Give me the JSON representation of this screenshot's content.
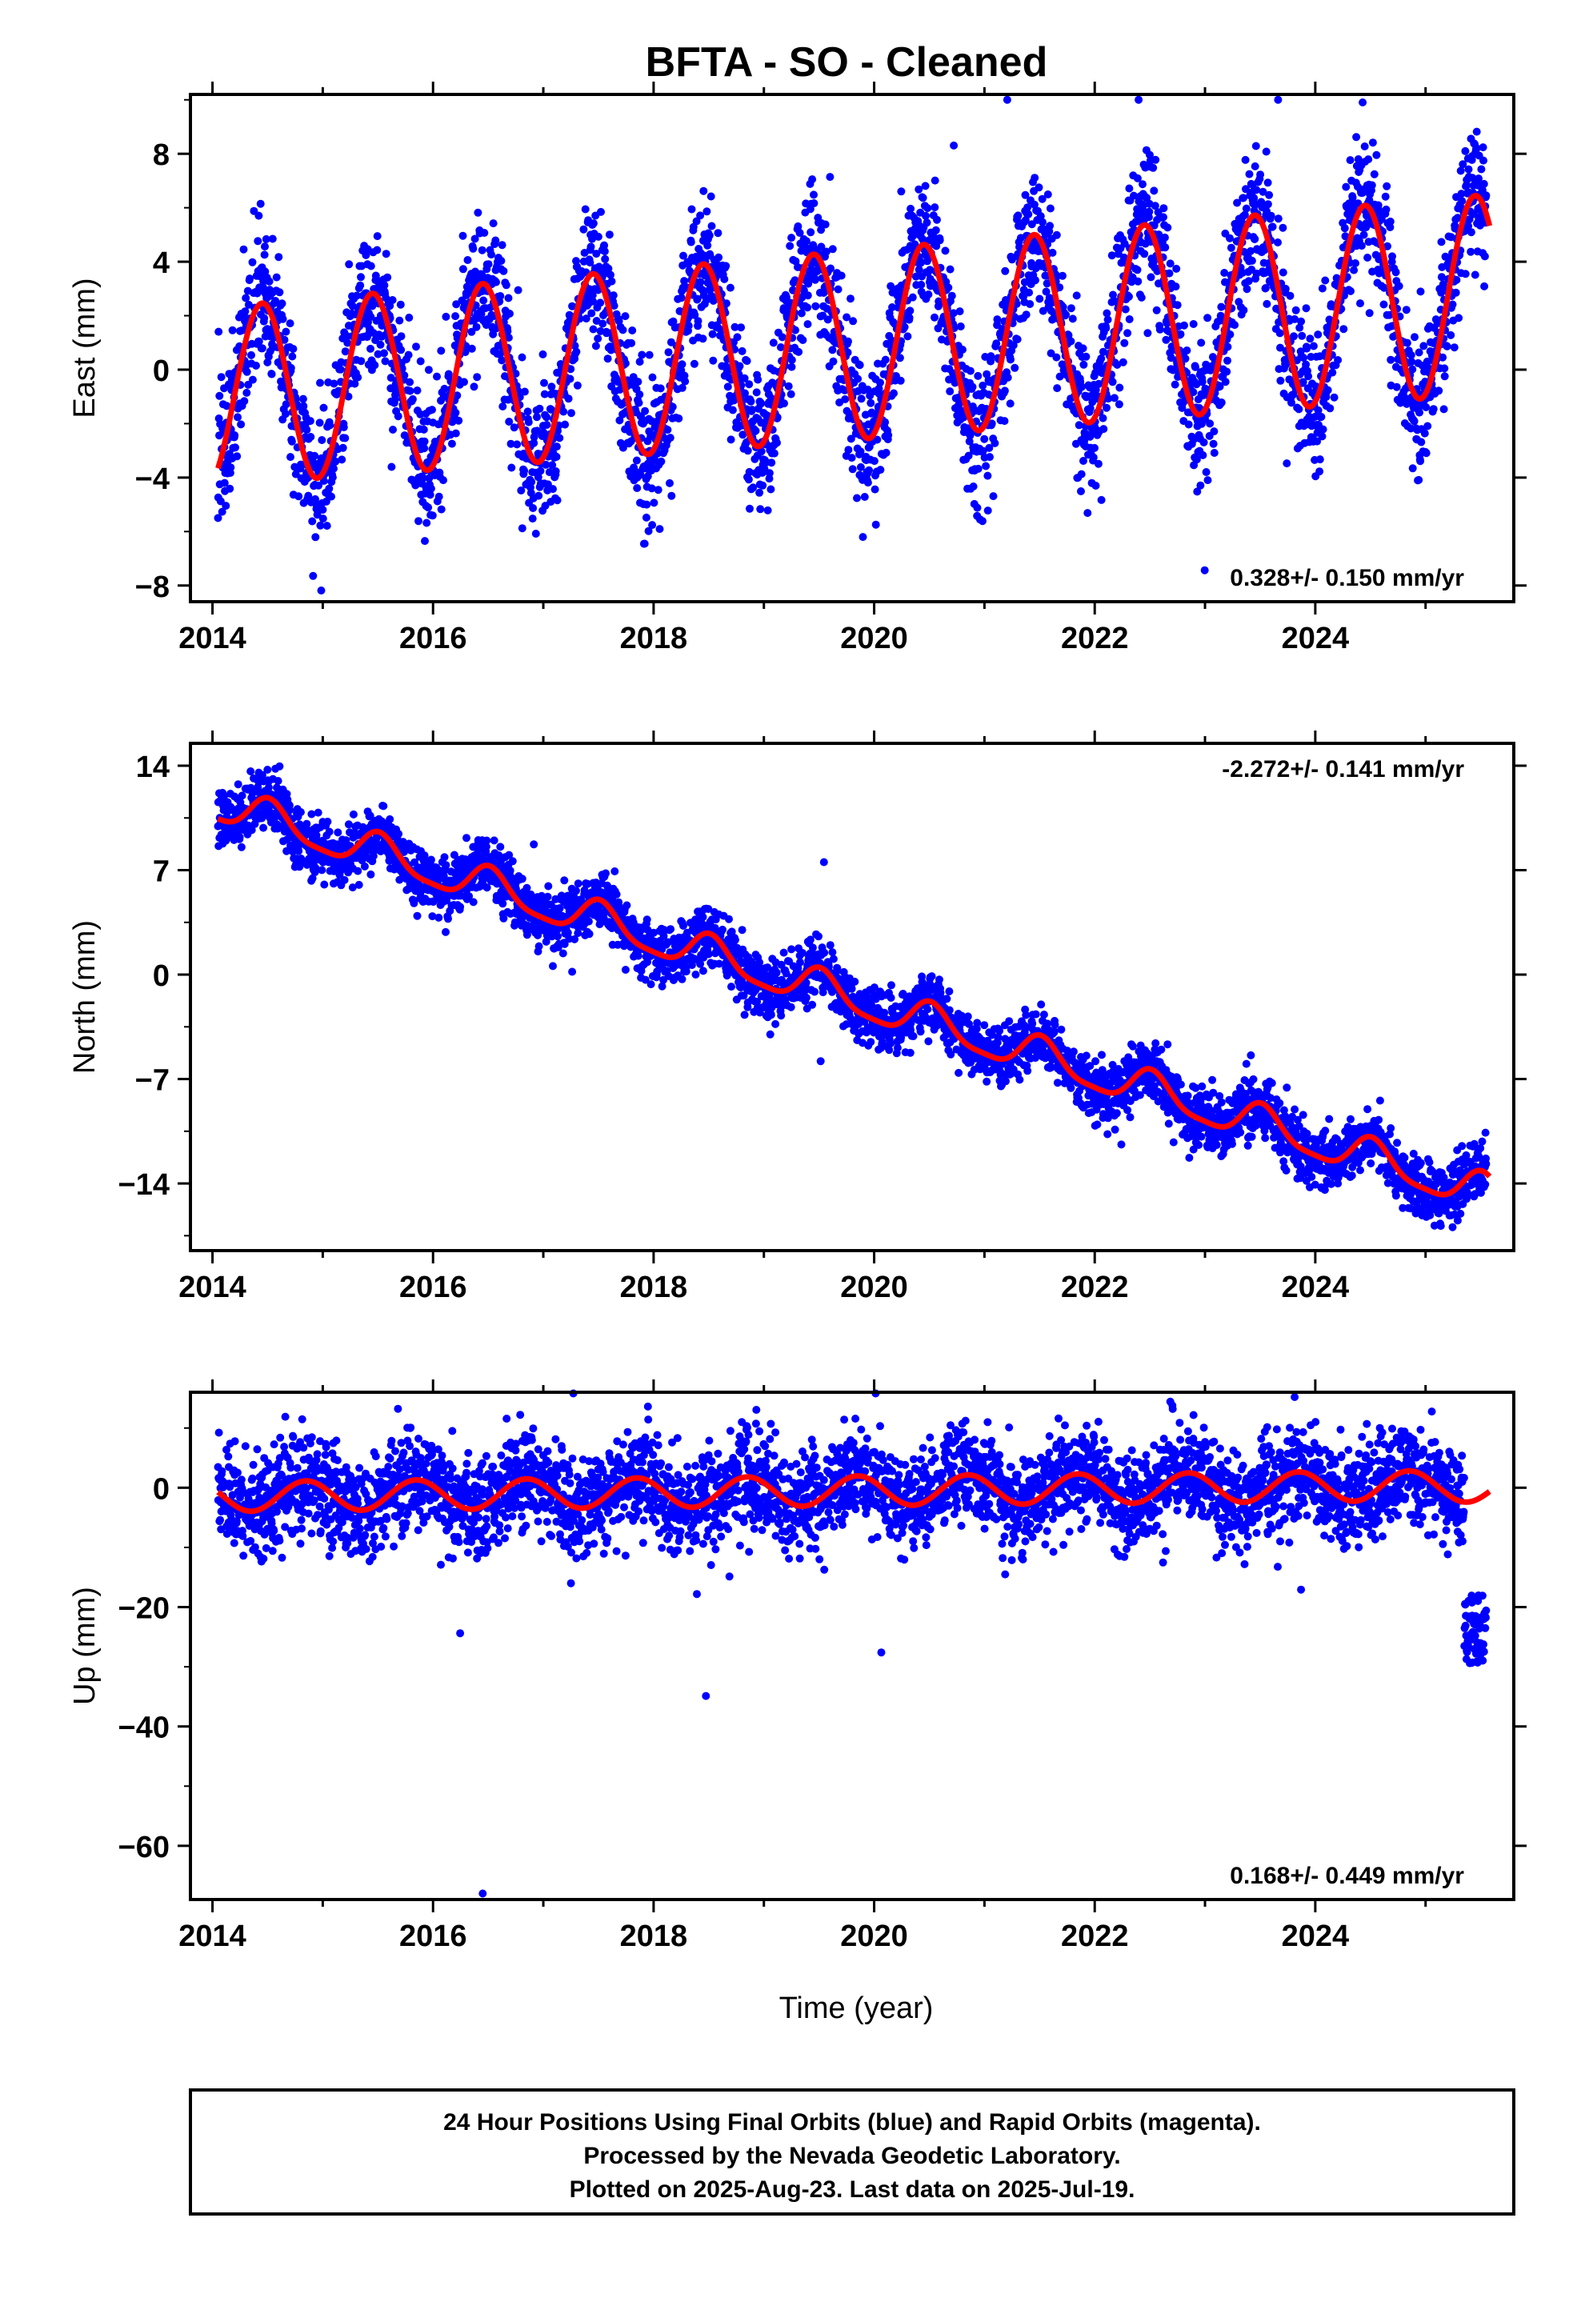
{
  "title": "BFTA  - SO - Cleaned",
  "colors": {
    "data": "#0000ff",
    "model": "#ff0000",
    "frame": "#000000"
  },
  "x_axis": {
    "label": "Time (year)",
    "range": [
      2013.8,
      2025.8
    ],
    "ticks": [
      2014,
      2016,
      2018,
      2020,
      2022,
      2024
    ]
  },
  "panels": [
    {
      "component": "East",
      "ylabel": "East (mm)",
      "ylim": [
        -8.6,
        10.2
      ],
      "yticks": [
        -8,
        -4,
        0,
        4,
        8
      ],
      "ytick_labels": [
        "−8",
        "−4",
        "0",
        "4",
        "8"
      ],
      "rate_text": "0.328+/- 0.150 mm/yr",
      "rate_position": "bottom-right",
      "model": {
        "offset_at_2014": -1.0,
        "trend": 0.328,
        "amplitude_start": 3.3,
        "amplitude_end": 3.7,
        "phase_peak_year_fraction": 0.45
      }
    },
    {
      "component": "North",
      "ylabel": "North (mm)",
      "ylim": [
        -18.5,
        15.5
      ],
      "yticks": [
        -14,
        -7,
        0,
        7,
        14
      ],
      "ytick_labels": [
        "−14",
        "−7",
        "0",
        "7",
        "14"
      ],
      "rate_text": "-2.272+/- 0.141 mm/yr",
      "rate_position": "top-right",
      "model": {
        "offset_at_2014": 11.5,
        "trend": -2.272,
        "amplitude_start": 1.2,
        "amplitude_end": 1.2,
        "phase_peak_year_fraction": 0.52
      }
    },
    {
      "component": "Up",
      "ylabel": "Up (mm)",
      "ylim": [
        -69,
        16
      ],
      "yticks": [
        -60,
        -40,
        -20,
        0
      ],
      "ytick_labels": [
        "−60",
        "−40",
        "−20",
        "0"
      ],
      "rate_text": "0.168+/- 0.449 mm/yr",
      "rate_position": "bottom-right",
      "model": {
        "offset_at_2014": -1.5,
        "trend": 0.168,
        "amplitude_start": 2.5,
        "amplitude_end": 2.5,
        "phase_peak_year_fraction": 0.85
      }
    }
  ],
  "chart_data": [
    {
      "type": "scatter",
      "title": "BFTA  - SO - Cleaned",
      "ylabel": "East (mm)",
      "xlabel": "",
      "xlim": [
        2013.8,
        2025.8
      ],
      "ylim": [
        -8.6,
        10.2
      ],
      "series": [
        {
          "name": "24 Hour Positions (Final Orbits)",
          "x_range": [
            2014.05,
            2025.55
          ],
          "y_range": [
            -8,
            9.8
          ]
        },
        {
          "name": "Model",
          "trend_mm_per_yr": 0.328,
          "seasonal_peaks_y": [
            2.4,
            2.8,
            3.1,
            3.4,
            3.7,
            4.0,
            4.3,
            4.6,
            5.0,
            5.3,
            5.6,
            6.0
          ],
          "seasonal_troughs_y": [
            -4.4,
            -4.1,
            -3.7,
            -3.4,
            -3.0,
            -2.7,
            -2.3,
            -2.0,
            -1.6,
            -1.3,
            -1.0
          ]
        }
      ],
      "annotation": "0.328+/- 0.150 mm/yr"
    },
    {
      "type": "scatter",
      "ylabel": "North (mm)",
      "xlim": [
        2013.8,
        2025.8
      ],
      "ylim": [
        -18.5,
        15.5
      ],
      "series": [
        {
          "name": "24 Hour Positions (Final Orbits)",
          "x_range": [
            2014.05,
            2025.55
          ],
          "y_range": [
            -17.5,
            15
          ]
        },
        {
          "name": "Model",
          "trend_mm_per_yr": -2.272,
          "start_y": 12.7,
          "end_y": -12.5
        }
      ],
      "annotation": "-2.272+/- 0.141 mm/yr"
    },
    {
      "type": "scatter",
      "ylabel": "Up (mm)",
      "xlabel": "Time (year)",
      "xlim": [
        2013.8,
        2025.8
      ],
      "ylim": [
        -69,
        16
      ],
      "series": [
        {
          "name": "24 Hour Positions (Final Orbits)",
          "x_range": [
            2014.05,
            2025.55
          ],
          "y_range": [
            -68,
            15
          ],
          "notable_outliers": [
            [
              2016.45,
              -68
            ],
            [
              2025.4,
              -25
            ]
          ]
        },
        {
          "name": "Model",
          "trend_mm_per_yr": 0.168,
          "start_y": -1.0,
          "end_y": -1.5
        }
      ],
      "annotation": "0.168+/- 0.449 mm/yr"
    }
  ],
  "footer": {
    "line1": "24 Hour Positions Using Final Orbits (blue) and Rapid Orbits (magenta).",
    "line2": "Processed by the Nevada Geodetic Laboratory.",
    "line3": "Plotted on 2025-Aug-23. Last data on 2025-Jul-19."
  }
}
